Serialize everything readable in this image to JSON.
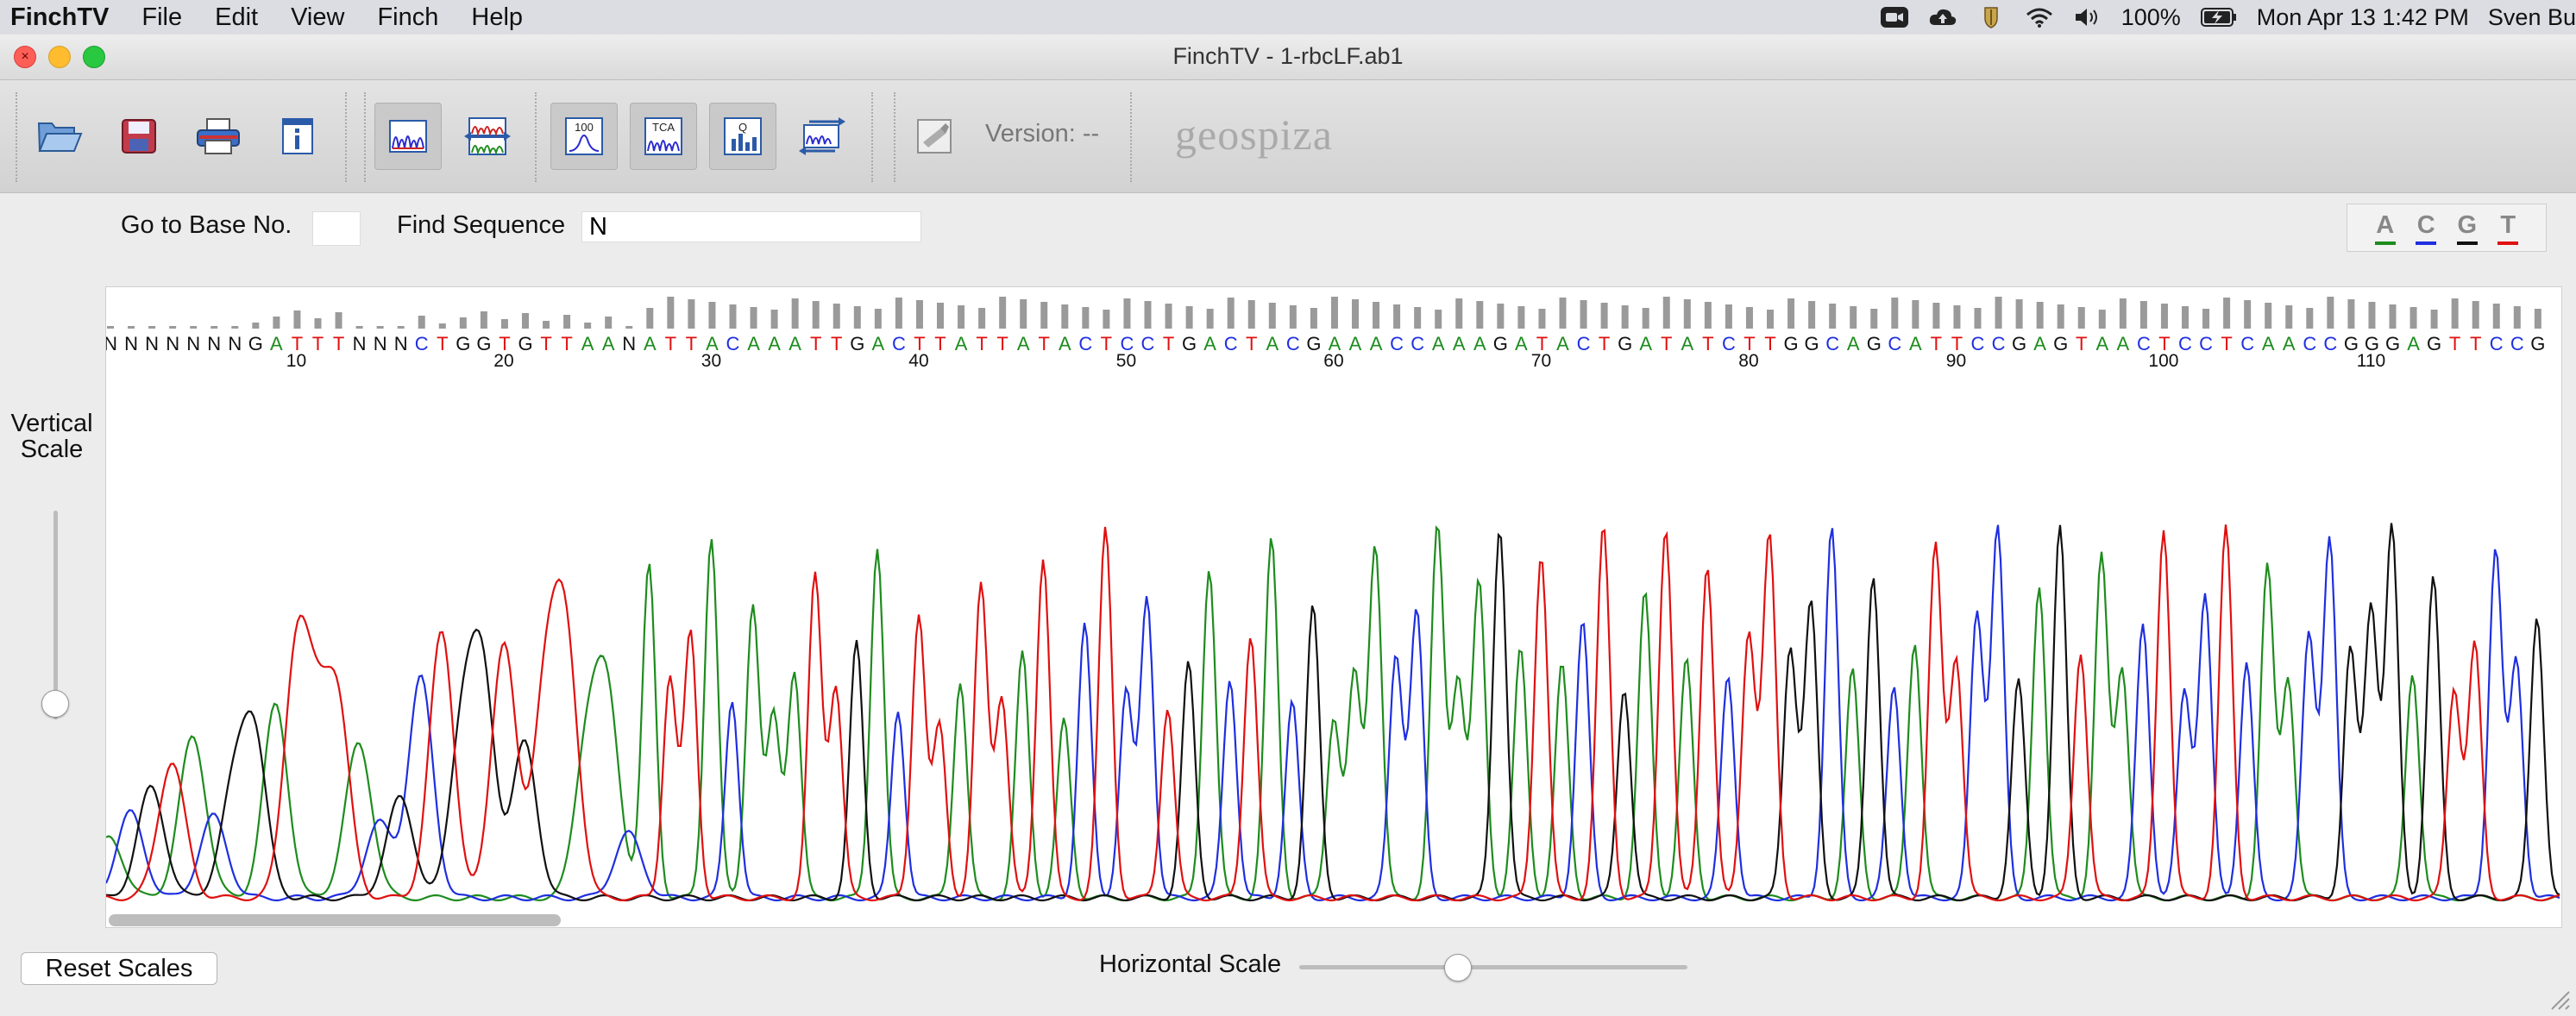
{
  "menubar": {
    "app": "FinchTV",
    "items": [
      "File",
      "Edit",
      "View",
      "Finch",
      "Help"
    ],
    "battery": "100%",
    "clock": "Mon Apr 13  1:42 PM",
    "user": "Sven Bu"
  },
  "window": {
    "title": "FinchTV - 1-rbcLF.ab1"
  },
  "toolbar": {
    "version_label": "Version: --",
    "logo": "geospiza",
    "buttons": [
      {
        "name": "open-folder-icon"
      },
      {
        "name": "save-icon"
      },
      {
        "name": "print-icon"
      },
      {
        "name": "info-icon"
      },
      {
        "name": "single-trace-view-icon",
        "active": true
      },
      {
        "name": "multi-trace-view-icon"
      },
      {
        "name": "quality-100-icon",
        "label": "100"
      },
      {
        "name": "tca-icon",
        "label": "TCA"
      },
      {
        "name": "quality-bars-icon"
      },
      {
        "name": "reverse-complement-icon"
      },
      {
        "name": "blast-tool-icon"
      }
    ]
  },
  "search": {
    "base_label": "Go to Base No.",
    "base_value": "",
    "find_label": "Find Sequence",
    "find_value": "N"
  },
  "legend": {
    "bases": [
      {
        "letter": "A",
        "color": "#1e8c1e"
      },
      {
        "letter": "C",
        "color": "#1f2fe0"
      },
      {
        "letter": "G",
        "color": "#111111"
      },
      {
        "letter": "T",
        "color": "#e01010"
      }
    ]
  },
  "vertical_scale": {
    "label_line1": "Vertical",
    "label_line2": "Scale",
    "level": 0.12
  },
  "horizontal_scale": {
    "label": "Horizontal Scale",
    "level": 0.4
  },
  "buttons": {
    "reset": "Reset Scales"
  },
  "trace": {
    "sequence": "NNNNNNNGATTTNNNCTGGTGTTAANATTACAAATTGACTTATTATACTCCTGACTACGAAACCAAAGATACTGATATCTTGGCAGCATTCCGAGTAACTCCTCAACCGGGAGTTCCG",
    "position_labels": [
      "10",
      "20",
      "30",
      "40",
      "50",
      "60",
      "70",
      "80",
      "90",
      "100",
      "110"
    ],
    "base_colors": {
      "A": "#1e8c1e",
      "C": "#1f2fe0",
      "G": "#111111",
      "T": "#e01010",
      "N": "#111111"
    }
  }
}
